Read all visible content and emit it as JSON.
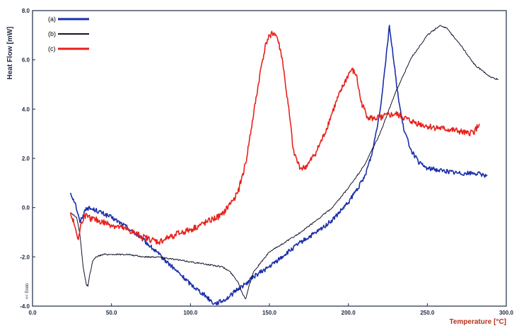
{
  "chart_data": {
    "type": "line",
    "xlabel": "Temperature",
    "xunit": "[°C]",
    "ylabel": "Heat Flow",
    "yunit": "[mW]",
    "endo_label": "<< Endo",
    "xlim": [
      0,
      300
    ],
    "ylim": [
      -4,
      8
    ],
    "x_ticks": [
      "0.0",
      "50.0",
      "100.0",
      "150.0",
      "200.0",
      "250.0",
      "300.0"
    ],
    "y_ticks": [
      "-4.0",
      "-2.0",
      "0.0",
      "2.0",
      "4.0",
      "6.0",
      "8.0"
    ],
    "grid": false,
    "legend_position": "top-left",
    "series": [
      {
        "name": "(a)",
        "color": "#1a2fa8",
        "x": [
          24,
          27,
          30,
          32,
          34,
          40,
          50,
          60,
          70,
          80,
          90,
          100,
          110,
          115,
          120,
          125,
          130,
          135,
          140,
          150,
          160,
          170,
          180,
          190,
          200,
          210,
          215,
          220,
          223,
          226,
          229,
          232,
          235,
          240,
          245,
          250,
          260,
          270,
          280,
          288
        ],
        "y": [
          0.6,
          0.2,
          -0.6,
          -0.3,
          0.0,
          -0.1,
          -0.4,
          -0.8,
          -1.3,
          -1.9,
          -2.5,
          -3.1,
          -3.6,
          -3.9,
          -3.8,
          -3.6,
          -3.3,
          -3.1,
          -2.8,
          -2.4,
          -1.9,
          -1.4,
          -1.0,
          -0.5,
          0.2,
          1.2,
          2.2,
          3.9,
          5.6,
          7.4,
          5.8,
          4.3,
          3.2,
          2.3,
          1.8,
          1.6,
          1.5,
          1.4,
          1.4,
          1.3
        ]
      },
      {
        "name": "(b)",
        "color": "#14142e",
        "x": [
          24,
          28,
          30,
          32,
          34,
          35,
          36,
          38,
          40,
          45,
          50,
          60,
          70,
          80,
          90,
          100,
          110,
          120,
          125,
          130,
          133,
          135,
          137,
          140,
          150,
          160,
          170,
          180,
          190,
          200,
          210,
          220,
          230,
          240,
          250,
          258,
          262,
          270,
          280,
          290,
          295
        ],
        "y": [
          -0.2,
          -0.4,
          -1.1,
          -2.4,
          -3.1,
          -3.2,
          -2.8,
          -2.2,
          -2.0,
          -1.9,
          -1.9,
          -1.9,
          -2.0,
          -2.0,
          -2.1,
          -2.2,
          -2.3,
          -2.4,
          -2.6,
          -3.0,
          -3.5,
          -3.7,
          -3.2,
          -2.6,
          -1.8,
          -1.4,
          -1.0,
          -0.5,
          0.0,
          0.8,
          1.7,
          3.0,
          4.7,
          6.1,
          7.0,
          7.4,
          7.3,
          6.7,
          5.8,
          5.3,
          5.2
        ]
      },
      {
        "name": "(c)",
        "color": "#e8211c",
        "x": [
          24,
          27,
          29,
          31,
          33,
          35,
          40,
          50,
          60,
          70,
          80,
          90,
          100,
          110,
          120,
          130,
          135,
          140,
          145,
          148,
          150,
          153,
          155,
          158,
          160,
          163,
          165,
          168,
          170,
          172,
          175,
          180,
          185,
          190,
          195,
          200,
          202,
          205,
          208,
          212,
          216,
          222,
          230,
          240,
          250,
          260,
          270,
          275,
          280,
          283
        ],
        "y": [
          -0.2,
          -0.8,
          -1.3,
          -0.6,
          -0.3,
          -0.4,
          -0.5,
          -0.7,
          -0.9,
          -1.2,
          -1.4,
          -1.1,
          -0.9,
          -0.6,
          -0.3,
          0.6,
          1.8,
          3.8,
          5.8,
          6.7,
          7.0,
          7.1,
          6.9,
          6.1,
          5.1,
          3.6,
          2.4,
          1.8,
          1.6,
          1.6,
          1.8,
          2.3,
          3.0,
          3.9,
          4.7,
          5.4,
          5.6,
          5.4,
          4.3,
          3.7,
          3.6,
          3.7,
          3.8,
          3.5,
          3.3,
          3.2,
          3.1,
          3.0,
          3.1,
          3.4
        ]
      }
    ]
  }
}
